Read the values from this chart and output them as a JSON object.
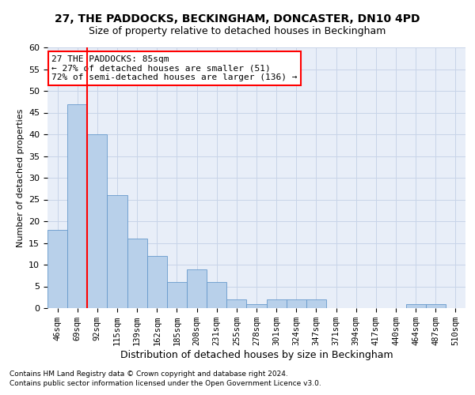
{
  "title_line1": "27, THE PADDOCKS, BECKINGHAM, DONCASTER, DN10 4PD",
  "title_line2": "Size of property relative to detached houses in Beckingham",
  "xlabel": "Distribution of detached houses by size in Beckingham",
  "ylabel": "Number of detached properties",
  "footnote1": "Contains HM Land Registry data © Crown copyright and database right 2024.",
  "footnote2": "Contains public sector information licensed under the Open Government Licence v3.0.",
  "categories": [
    "46sqm",
    "69sqm",
    "92sqm",
    "115sqm",
    "139sqm",
    "162sqm",
    "185sqm",
    "208sqm",
    "231sqm",
    "255sqm",
    "278sqm",
    "301sqm",
    "324sqm",
    "347sqm",
    "371sqm",
    "394sqm",
    "417sqm",
    "440sqm",
    "464sqm",
    "487sqm",
    "510sqm"
  ],
  "values": [
    18,
    47,
    40,
    26,
    16,
    12,
    6,
    9,
    6,
    2,
    1,
    2,
    2,
    2,
    0,
    0,
    0,
    0,
    1,
    1,
    0
  ],
  "bar_color": "#b8d0ea",
  "bar_edge_color": "#6699cc",
  "vline_x_index": 1.5,
  "annotation_text_line1": "27 THE PADDOCKS: 85sqm",
  "annotation_text_line2": "← 27% of detached houses are smaller (51)",
  "annotation_text_line3": "72% of semi-detached houses are larger (136) →",
  "ylim": [
    0,
    60
  ],
  "yticks": [
    0,
    5,
    10,
    15,
    20,
    25,
    30,
    35,
    40,
    45,
    50,
    55,
    60
  ],
  "grid_color": "#c8d4e8",
  "background_color": "#e8eef8"
}
